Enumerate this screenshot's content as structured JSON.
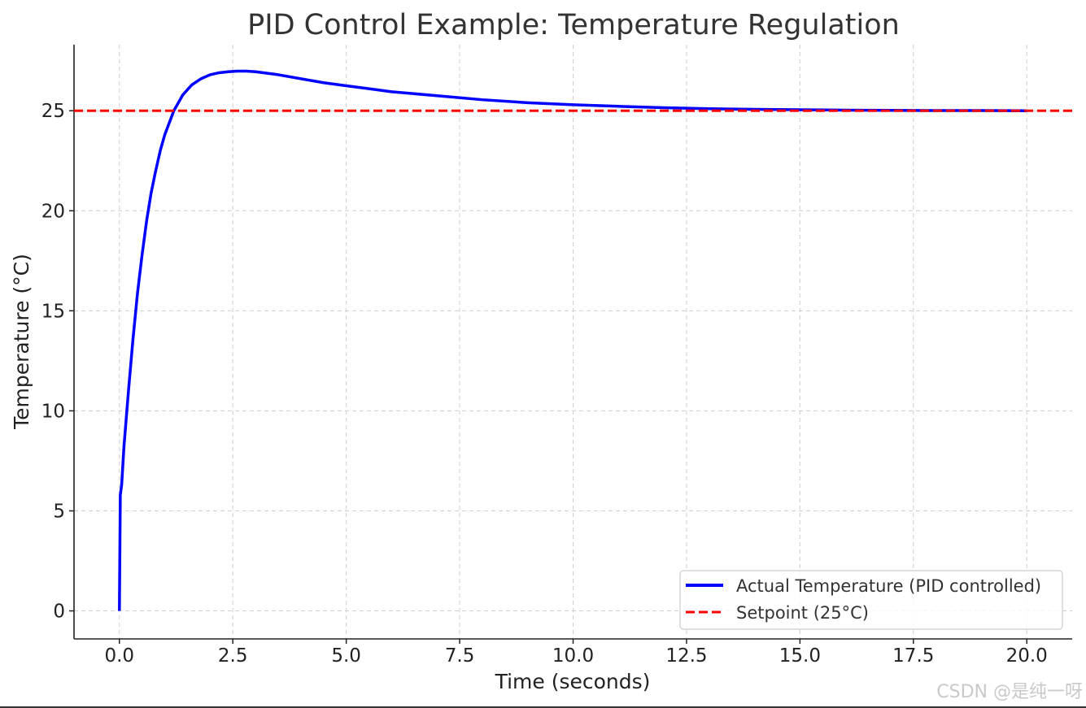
{
  "chart_data": {
    "type": "line",
    "title": "PID Control Example: Temperature Regulation",
    "xlabel": "Time (seconds)",
    "ylabel": "Temperature (°C)",
    "xlim": [
      -1.0,
      21.0
    ],
    "ylim": [
      -1.4,
      28.3
    ],
    "xticks": [
      0.0,
      2.5,
      5.0,
      7.5,
      10.0,
      12.5,
      15.0,
      17.5,
      20.0
    ],
    "xtick_labels": [
      "0.0",
      "2.5",
      "5.0",
      "7.5",
      "10.0",
      "12.5",
      "15.0",
      "17.5",
      "20.0"
    ],
    "yticks": [
      0,
      5,
      10,
      15,
      20,
      25
    ],
    "ytick_labels": [
      "0",
      "5",
      "10",
      "15",
      "20",
      "25"
    ],
    "grid": true,
    "legend_position": "bottom-right",
    "series": [
      {
        "name": "Actual Temperature (PID controlled)",
        "color": "#0000ff",
        "style": "solid",
        "x": [
          0,
          0.02,
          0.05,
          0.1,
          0.2,
          0.3,
          0.4,
          0.5,
          0.6,
          0.7,
          0.8,
          0.9,
          1.0,
          1.2,
          1.4,
          1.6,
          1.8,
          2.0,
          2.2,
          2.4,
          2.6,
          2.8,
          3.0,
          3.5,
          4.0,
          4.5,
          5.0,
          5.5,
          6.0,
          7.0,
          8.0,
          9.0,
          10.0,
          11.0,
          12.0,
          13.0,
          14.0,
          15.0,
          16.0,
          17.0,
          18.0,
          19.0,
          20.0
        ],
        "y": [
          0,
          5.8,
          6.3,
          8.2,
          11.0,
          13.6,
          15.9,
          17.8,
          19.5,
          20.9,
          22.0,
          23.0,
          23.8,
          25.0,
          25.8,
          26.3,
          26.6,
          26.8,
          26.9,
          26.95,
          26.98,
          26.98,
          26.95,
          26.8,
          26.6,
          26.4,
          26.25,
          26.1,
          25.95,
          25.75,
          25.55,
          25.4,
          25.3,
          25.22,
          25.15,
          25.1,
          25.07,
          25.05,
          25.03,
          25.02,
          25.01,
          25.01,
          25.0
        ]
      },
      {
        "name": "Setpoint (25°C)",
        "color": "#ff0000",
        "style": "dashed",
        "x": [
          -1.0,
          21.0
        ],
        "y": [
          25,
          25
        ]
      }
    ]
  },
  "watermark": "CSDN @是纯一呀"
}
